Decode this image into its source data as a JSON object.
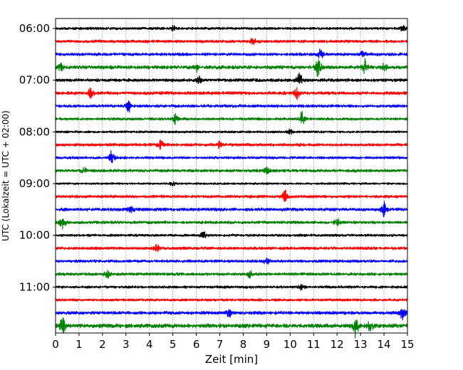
{
  "chart_data": {
    "type": "line",
    "title": "",
    "xlabel": "Zeit  [min]",
    "ylabel": "UTC (Lokalzeit = UTC + 02:00)",
    "xlim": [
      0,
      15
    ],
    "xticks": [
      0,
      1,
      2,
      3,
      4,
      5,
      6,
      7,
      8,
      9,
      10,
      11,
      12,
      13,
      14,
      15
    ],
    "x_grid": "vertical dotted lines at each minute",
    "y_ticks": [
      {
        "label": "06:00",
        "row": 0
      },
      {
        "label": "07:00",
        "row": 4
      },
      {
        "label": "08:00",
        "row": 8
      },
      {
        "label": "09:00",
        "row": 12
      },
      {
        "label": "10:00",
        "row": 16
      },
      {
        "label": "11:00",
        "row": 20
      }
    ],
    "trace_interval_min": 15,
    "color_cycle": [
      "#000000",
      "#ff0000",
      "#0000ff",
      "#008000"
    ],
    "traces": [
      {
        "row": 0,
        "noise": 0.18,
        "events": [
          [
            5.0,
            0.35
          ],
          [
            14.8,
            0.45
          ]
        ]
      },
      {
        "row": 1,
        "noise": 0.2,
        "events": [
          [
            8.4,
            0.45
          ]
        ]
      },
      {
        "row": 2,
        "noise": 0.2,
        "events": [
          [
            11.3,
            0.7
          ],
          [
            13.1,
            0.4
          ]
        ]
      },
      {
        "row": 3,
        "noise": 0.25,
        "events": [
          [
            0.2,
            0.5
          ],
          [
            6.0,
            0.5
          ],
          [
            11.2,
            1.3
          ],
          [
            13.2,
            1.1
          ],
          [
            14.0,
            0.5
          ]
        ]
      },
      {
        "row": 4,
        "noise": 0.22,
        "events": [
          [
            6.1,
            0.5
          ],
          [
            10.4,
            0.8
          ]
        ]
      },
      {
        "row": 5,
        "noise": 0.22,
        "events": [
          [
            1.5,
            0.6
          ],
          [
            10.3,
            0.7
          ]
        ]
      },
      {
        "row": 6,
        "noise": 0.2,
        "events": [
          [
            3.1,
            0.8
          ]
        ]
      },
      {
        "row": 7,
        "noise": 0.18,
        "events": [
          [
            5.1,
            0.8
          ],
          [
            10.5,
            0.9
          ]
        ]
      },
      {
        "row": 8,
        "noise": 0.16,
        "events": [
          [
            10.0,
            0.3
          ]
        ]
      },
      {
        "row": 9,
        "noise": 0.2,
        "events": [
          [
            4.5,
            0.6
          ],
          [
            7.0,
            0.4
          ]
        ]
      },
      {
        "row": 10,
        "noise": 0.18,
        "events": [
          [
            2.4,
            0.9
          ]
        ]
      },
      {
        "row": 11,
        "noise": 0.2,
        "events": [
          [
            1.2,
            0.4
          ],
          [
            9.0,
            0.5
          ]
        ]
      },
      {
        "row": 12,
        "noise": 0.14,
        "events": [
          [
            5.0,
            0.3
          ]
        ]
      },
      {
        "row": 13,
        "noise": 0.2,
        "events": [
          [
            9.8,
            0.8
          ]
        ]
      },
      {
        "row": 14,
        "noise": 0.22,
        "events": [
          [
            3.2,
            0.45
          ],
          [
            14.0,
            1.0
          ]
        ]
      },
      {
        "row": 15,
        "noise": 0.2,
        "events": [
          [
            0.3,
            0.9
          ],
          [
            12.0,
            0.45
          ]
        ]
      },
      {
        "row": 16,
        "noise": 0.18,
        "events": [
          [
            6.3,
            0.6
          ]
        ]
      },
      {
        "row": 17,
        "noise": 0.2,
        "events": [
          [
            4.3,
            0.45
          ]
        ]
      },
      {
        "row": 18,
        "noise": 0.2,
        "events": [
          [
            9.0,
            0.4
          ]
        ]
      },
      {
        "row": 19,
        "noise": 0.2,
        "events": [
          [
            2.2,
            0.6
          ],
          [
            8.3,
            0.5
          ]
        ]
      },
      {
        "row": 20,
        "noise": 0.18,
        "events": [
          [
            10.5,
            0.35
          ]
        ]
      },
      {
        "row": 21,
        "noise": 0.18,
        "events": []
      },
      {
        "row": 22,
        "noise": 0.22,
        "events": [
          [
            7.4,
            0.5
          ],
          [
            14.8,
            1.0
          ]
        ]
      },
      {
        "row": 23,
        "noise": 0.28,
        "events": [
          [
            0.3,
            1.2
          ],
          [
            12.8,
            1.4
          ],
          [
            13.4,
            0.7
          ]
        ]
      }
    ]
  }
}
